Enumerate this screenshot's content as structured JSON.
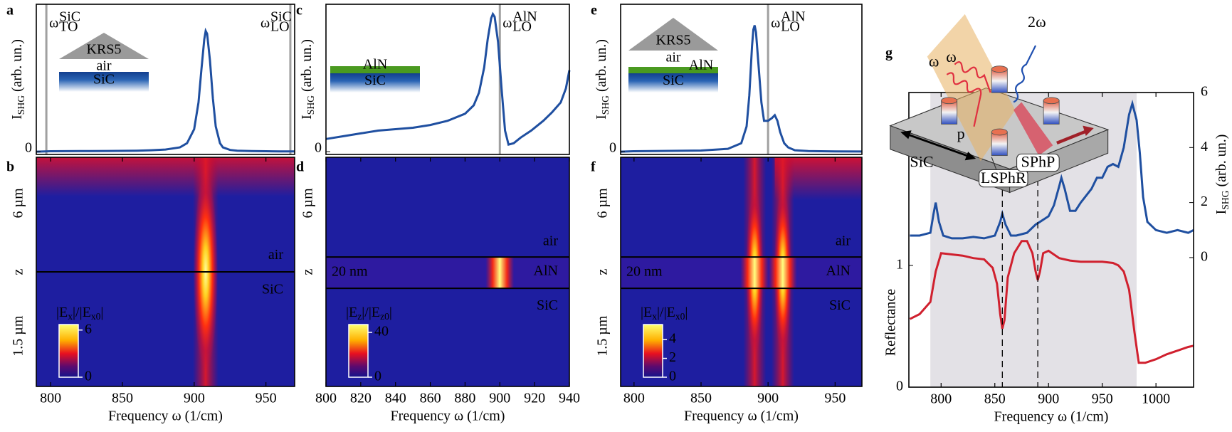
{
  "chart_data": [
    {
      "type": "line",
      "panel_label": "a",
      "xlim": [
        790,
        970
      ],
      "ylim": [
        -0.02,
        1.05
      ],
      "yticks": [
        0
      ],
      "ylabel": [
        "I",
        "SHG",
        "(arb. un.)"
      ],
      "vlines": [
        {
          "value": 797,
          "label": [
            "ω",
            "TO",
            "SiC"
          ],
          "color": "#a0a0a0"
        },
        {
          "value": 967,
          "label": [
            "ω",
            "LO",
            "SiC"
          ],
          "color": "#a0a0a0"
        }
      ],
      "inset": {
        "prism": "KRS5",
        "gap": "air",
        "substrate": "SiC"
      },
      "series": [
        {
          "color": "#1f4fa0",
          "x": [
            790,
            800,
            820,
            840,
            860,
            870,
            880,
            890,
            895,
            900,
            903,
            905,
            907,
            908,
            909,
            911,
            913,
            915,
            918,
            920,
            925,
            930,
            940,
            950,
            960,
            970
          ],
          "values": [
            0,
            0.003,
            0.004,
            0.005,
            0.007,
            0.01,
            0.015,
            0.03,
            0.06,
            0.16,
            0.35,
            0.58,
            0.8,
            0.86,
            0.84,
            0.65,
            0.38,
            0.18,
            0.06,
            0.03,
            0.012,
            0.007,
            0.004,
            0.003,
            0.002,
            0.002
          ]
        }
      ]
    },
    {
      "type": "heatmap",
      "panel_label": "b",
      "xlim": [
        790,
        970
      ],
      "xticks": [
        800,
        850,
        900,
        950
      ],
      "xlabel": "Frequency ω (1/cm)",
      "ylabels": [
        "6 µm",
        "z",
        "1.5 µm"
      ],
      "region_labels": [
        "air",
        "SiC"
      ],
      "peaks": [
        908
      ],
      "colorbar_label": [
        "|E",
        "x",
        "|/|E",
        "x0",
        "|"
      ],
      "colorbar_lim": [
        0,
        6.7
      ],
      "colorbar_ticks": [
        0,
        6
      ]
    },
    {
      "type": "line",
      "panel_label": "c",
      "xlim": [
        800,
        940
      ],
      "ylim": [
        -0.02,
        1.05
      ],
      "yticks": [
        0
      ],
      "ylabel": [
        "I",
        "SHG",
        "(arb. un.)"
      ],
      "vlines": [
        {
          "value": 900,
          "label": [
            "ω",
            "LO",
            "AlN"
          ],
          "color": "#a0a0a0"
        }
      ],
      "inset": {
        "film": "AlN",
        "substrate": "SiC"
      },
      "series": [
        {
          "color": "#1f4fa0",
          "x": [
            800,
            810,
            820,
            830,
            840,
            850,
            860,
            870,
            880,
            885,
            888,
            891,
            893,
            895,
            896,
            897,
            899,
            901,
            903,
            905,
            908,
            912,
            918,
            925,
            930,
            935,
            938,
            940
          ],
          "values": [
            0.09,
            0.11,
            0.13,
            0.15,
            0.16,
            0.17,
            0.19,
            0.22,
            0.27,
            0.33,
            0.42,
            0.6,
            0.8,
            0.95,
            0.98,
            0.96,
            0.78,
            0.45,
            0.15,
            0.05,
            0.06,
            0.1,
            0.15,
            0.22,
            0.28,
            0.35,
            0.45,
            0.58
          ]
        }
      ]
    },
    {
      "type": "heatmap",
      "panel_label": "d",
      "xlim": [
        800,
        940
      ],
      "xticks": [
        800,
        820,
        840,
        860,
        880,
        900,
        920,
        940
      ],
      "xlabel": "Frequency ω (1/cm)",
      "ylabels": [
        "6 µm",
        "z"
      ],
      "region_labels": [
        "air",
        "AlN",
        "SiC"
      ],
      "layer_label": "20 nm",
      "peaks": [
        900
      ],
      "colorbar_label": [
        "|E",
        "z",
        "|/|E",
        "z0",
        "|"
      ],
      "colorbar_lim": [
        0,
        47
      ],
      "colorbar_ticks": [
        0,
        40
      ]
    },
    {
      "type": "line",
      "panel_label": "e",
      "xlim": [
        790,
        970
      ],
      "ylim": [
        -0.02,
        1.05
      ],
      "yticks": [
        0
      ],
      "ylabel": [
        "I",
        "SHG",
        "(arb. un.)"
      ],
      "vlines": [
        {
          "value": 900,
          "label": [
            "ω",
            "LO",
            "AlN"
          ],
          "color": "#a0a0a0"
        }
      ],
      "inset": {
        "prism": "KRS5",
        "gap": "air",
        "film": "AlN",
        "substrate": "SiC"
      },
      "series": [
        {
          "color": "#1f4fa0",
          "x": [
            790,
            800,
            820,
            850,
            870,
            880,
            884,
            886,
            888,
            889,
            890,
            891,
            893,
            895,
            897,
            900,
            903,
            905,
            907,
            909,
            912,
            915,
            920,
            930,
            950,
            970
          ],
          "values": [
            0,
            0.003,
            0.005,
            0.008,
            0.02,
            0.06,
            0.18,
            0.4,
            0.75,
            0.87,
            0.9,
            0.85,
            0.6,
            0.35,
            0.22,
            0.22,
            0.24,
            0.26,
            0.22,
            0.14,
            0.06,
            0.03,
            0.01,
            0.004,
            0.002,
            0.001
          ]
        }
      ]
    },
    {
      "type": "heatmap",
      "panel_label": "f",
      "xlim": [
        790,
        970
      ],
      "xticks": [
        800,
        850,
        900,
        950
      ],
      "xlabel": "Frequency ω (1/cm)",
      "ylabels": [
        "6 µm",
        "z",
        "1.5 µm"
      ],
      "region_labels": [
        "air",
        "AlN",
        "SiC"
      ],
      "layer_label": "20 nm",
      "peaks": [
        890,
        911
      ],
      "colorbar_label": [
        "|E",
        "x",
        "|/|E",
        "x0",
        "|"
      ],
      "colorbar_lim": [
        0,
        5.6
      ],
      "colorbar_ticks": [
        0,
        2,
        4
      ]
    },
    {
      "type": "dual",
      "panel_label": "g",
      "xlim": [
        770,
        1035
      ],
      "xticks": [
        800,
        850,
        900,
        950,
        1000
      ],
      "xlabel": "Frequency ω (1/cm)",
      "ylim": [
        0,
        2.42
      ],
      "yticks": [
        0,
        1
      ],
      "ylabel": "Reflectance",
      "y2lim": [
        -4.71,
        6
      ],
      "y2ticks": [
        0,
        2,
        4,
        6
      ],
      "y2label": [
        "I",
        "SHG",
        "(arb. un.)"
      ],
      "shaded_span": [
        790,
        982
      ],
      "dashed_lines": [
        857,
        890
      ],
      "diagram": {
        "pump": [
          "ω",
          "ω"
        ],
        "shg": "2ω",
        "polarization": "p",
        "material": "SiC",
        "modes": [
          "LSPhR",
          "SPhP"
        ]
      },
      "series": [
        {
          "color": "#d0202e",
          "axis": "y",
          "x": [
            771,
            780,
            790,
            795,
            800,
            810,
            820,
            830,
            840,
            848,
            852,
            855,
            857,
            859,
            862,
            868,
            875,
            880,
            885,
            888,
            890,
            892,
            895,
            900,
            910,
            920,
            930,
            940,
            950,
            960,
            965,
            970,
            975,
            980,
            984,
            990,
            1000,
            1010,
            1020,
            1030,
            1035
          ],
          "values": [
            0.56,
            0.6,
            0.7,
            0.95,
            1.1,
            1.09,
            1.08,
            1.06,
            1.05,
            0.98,
            0.85,
            0.6,
            0.48,
            0.55,
            0.9,
            1.1,
            1.2,
            1.2,
            1.1,
            0.95,
            0.88,
            0.95,
            1.1,
            1.12,
            1.06,
            1.04,
            1.03,
            1.03,
            1.03,
            1.02,
            1.0,
            0.95,
            0.8,
            0.45,
            0.2,
            0.2,
            0.23,
            0.27,
            0.3,
            0.33,
            0.34
          ]
        },
        {
          "color": "#1f4fa0",
          "axis": "y2",
          "x": [
            771,
            780,
            790,
            793,
            795,
            798,
            802,
            810,
            820,
            830,
            840,
            850,
            855,
            857,
            860,
            865,
            870,
            880,
            888,
            892,
            900,
            905,
            910,
            912,
            915,
            920,
            925,
            930,
            940,
            945,
            950,
            955,
            960,
            965,
            970,
            975,
            978,
            982,
            985,
            988,
            992,
            1000,
            1010,
            1020,
            1030,
            1035
          ],
          "values": [
            0.8,
            0.8,
            0.9,
            1.6,
            2.0,
            1.3,
            0.8,
            0.7,
            0.7,
            0.75,
            0.7,
            0.8,
            1.3,
            1.6,
            1.2,
            0.8,
            0.8,
            0.9,
            1.2,
            1.3,
            1.5,
            1.9,
            2.6,
            2.9,
            2.5,
            1.7,
            1.7,
            2.0,
            2.5,
            2.9,
            2.9,
            3.3,
            3.4,
            3.3,
            4.0,
            5.2,
            5.6,
            5.0,
            3.8,
            2.2,
            1.3,
            1.0,
            0.9,
            1.0,
            0.9,
            1.0
          ]
        }
      ]
    }
  ]
}
